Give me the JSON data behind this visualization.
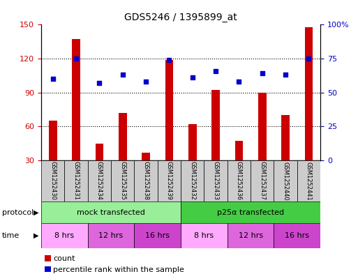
{
  "title": "GDS5246 / 1395899_at",
  "samples": [
    "GSM1252430",
    "GSM1252431",
    "GSM1252434",
    "GSM1252435",
    "GSM1252438",
    "GSM1252439",
    "GSM1252432",
    "GSM1252433",
    "GSM1252436",
    "GSM1252437",
    "GSM1252440",
    "GSM1252441"
  ],
  "counts": [
    65,
    137,
    45,
    72,
    37,
    119,
    62,
    92,
    47,
    90,
    70,
    148
  ],
  "percentiles": [
    60,
    75,
    57,
    63,
    58,
    74,
    61,
    66,
    58,
    64,
    63,
    75
  ],
  "ylim_left": [
    30,
    150
  ],
  "ylim_right": [
    0,
    100
  ],
  "yticks_left": [
    30,
    60,
    90,
    120,
    150
  ],
  "yticks_right": [
    0,
    25,
    50,
    75,
    100
  ],
  "ytick_labels_right": [
    "0",
    "25",
    "50",
    "75",
    "100%"
  ],
  "bar_color": "#cc0000",
  "dot_color": "#0000cc",
  "bar_width": 0.35,
  "protocol_groups": [
    {
      "label": "mock transfected",
      "start": 0,
      "end": 6,
      "color": "#99ee99"
    },
    {
      "label": "p25α transfected",
      "start": 6,
      "end": 12,
      "color": "#44cc44"
    }
  ],
  "time_groups": [
    {
      "label": "8 hrs",
      "start": 0,
      "end": 2,
      "color": "#ffaaff"
    },
    {
      "label": "12 hrs",
      "start": 2,
      "end": 4,
      "color": "#dd66dd"
    },
    {
      "label": "16 hrs",
      "start": 4,
      "end": 6,
      "color": "#cc44cc"
    },
    {
      "label": "8 hrs",
      "start": 6,
      "end": 8,
      "color": "#ffaaff"
    },
    {
      "label": "12 hrs",
      "start": 8,
      "end": 10,
      "color": "#dd66dd"
    },
    {
      "label": "16 hrs",
      "start": 10,
      "end": 12,
      "color": "#cc44cc"
    }
  ],
  "dotted_lines": [
    60,
    90,
    120
  ],
  "bg_color": "#ffffff",
  "plot_bg": "#ffffff",
  "left_label_color": "#cc0000",
  "right_label_color": "#0000cc",
  "protocol_label": "protocol",
  "time_label": "time",
  "legend": [
    "count",
    "percentile rank within the sample"
  ],
  "sample_box_color": "#cccccc",
  "title_fontsize": 10,
  "tick_fontsize": 8,
  "label_fontsize": 8
}
